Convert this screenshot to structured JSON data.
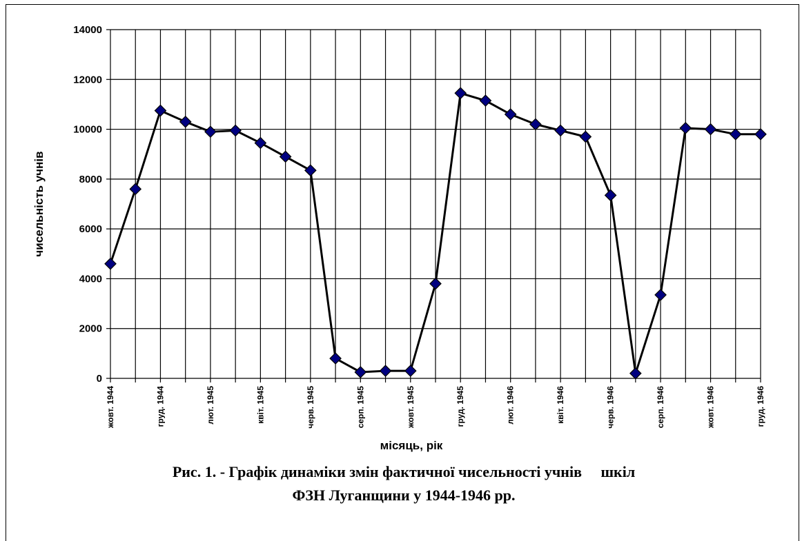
{
  "chart_data": {
    "type": "line",
    "title": "",
    "xlabel": "місяць, рік",
    "ylabel": "чисельність учнів",
    "ylim": [
      0,
      14000
    ],
    "yticks": [
      "0",
      "2000",
      "4000",
      "6000",
      "8000",
      "10000",
      "12000",
      "14000"
    ],
    "grid": true,
    "categories": [
      "жовт. 1944",
      "",
      "груд. 1944",
      "",
      "лют. 1945",
      "",
      "квіт. 1945",
      "",
      "черв. 1945",
      "",
      "серп. 1945",
      "",
      "жовт. 1945",
      "",
      "груд. 1945",
      "",
      "лют. 1946",
      "",
      "квіт. 1946",
      "",
      "черв. 1946",
      "",
      "серп. 1946",
      "",
      "жовт. 1946",
      "",
      "груд. 1946"
    ],
    "series": [
      {
        "values": [
          4600,
          7600,
          10750,
          10300,
          9900,
          9950,
          9450,
          8900,
          8350,
          800,
          250,
          300,
          300,
          3800,
          11450,
          11150,
          10600,
          10200,
          9950,
          9700,
          7350,
          200,
          3350,
          10050,
          10000,
          9800,
          9800
        ]
      }
    ],
    "colors": {
      "line": "#000000",
      "marker": "#000080",
      "grid": "#000000"
    }
  },
  "caption": {
    "line1": "Рис. 1. - Графік динаміки змін фактичної чисельності учнів     шкіл",
    "line2": "ФЗН Луганщини у 1944-1946 рр."
  }
}
